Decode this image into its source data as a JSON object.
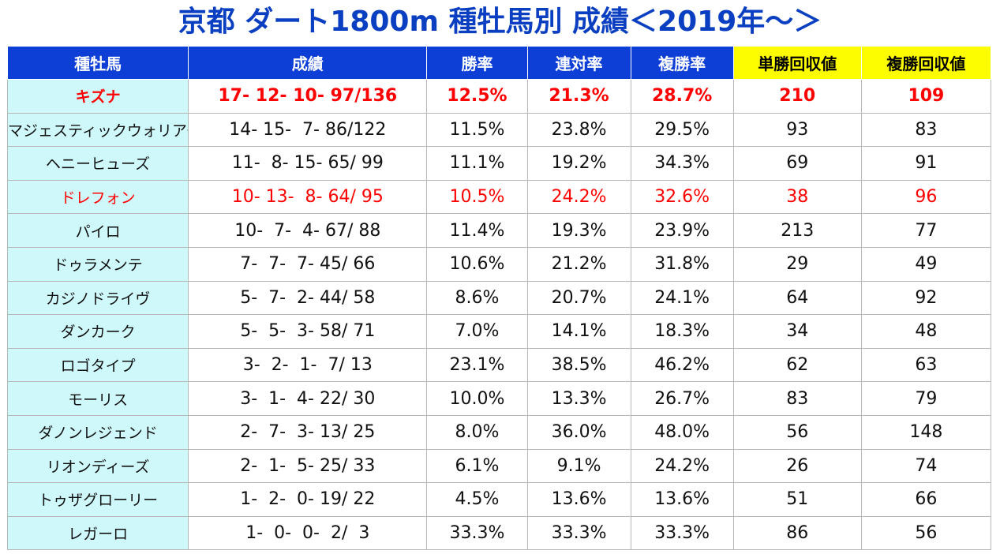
{
  "title": "京都 ダート1800m 種牡馬別 成績＜2019年～＞",
  "columns": [
    "種牡馬",
    "成績",
    "勝率",
    "連対率",
    "複勝率",
    "単勝回収値",
    "複勝回収値"
  ],
  "colors": {
    "header_bg": "#0d3fd6",
    "highlight_header_bg": "#fdfd00",
    "name_bg": "#cff8fb",
    "emphasis_text": "#ff0000",
    "title_text": "#0a3fc2"
  },
  "rows": [
    {
      "name": "キズナ",
      "record": "17- 12- 10- 97/136",
      "win": "12.5%",
      "quinella": "21.3%",
      "place": "28.7%",
      "win_roi": "210",
      "place_roi": "109",
      "style": "bold red"
    },
    {
      "name": "マジェスティックウォリアー",
      "record": "14- 15-  7- 86/122",
      "win": "11.5%",
      "quinella": "23.8%",
      "place": "29.5%",
      "win_roi": "93",
      "place_roi": "83",
      "style": ""
    },
    {
      "name": "ヘニーヒューズ",
      "record": "11-  8- 15- 65/ 99",
      "win": "11.1%",
      "quinella": "19.2%",
      "place": "34.3%",
      "win_roi": "69",
      "place_roi": "91",
      "style": ""
    },
    {
      "name": "ドレフォン",
      "record": "10- 13-  8- 64/ 95",
      "win": "10.5%",
      "quinella": "24.2%",
      "place": "32.6%",
      "win_roi": "38",
      "place_roi": "96",
      "style": "red"
    },
    {
      "name": "パイロ",
      "record": "10-  7-  4- 67/ 88",
      "win": "11.4%",
      "quinella": "19.3%",
      "place": "23.9%",
      "win_roi": "213",
      "place_roi": "77",
      "style": ""
    },
    {
      "name": "ドゥラメンテ",
      "record": "7-  7-  7- 45/ 66",
      "win": "10.6%",
      "quinella": "21.2%",
      "place": "31.8%",
      "win_roi": "29",
      "place_roi": "49",
      "style": ""
    },
    {
      "name": "カジノドライヴ",
      "record": "5-  7-  2- 44/ 58",
      "win": "8.6%",
      "quinella": "20.7%",
      "place": "24.1%",
      "win_roi": "64",
      "place_roi": "92",
      "style": ""
    },
    {
      "name": "ダンカーク",
      "record": "5-  5-  3- 58/ 71",
      "win": "7.0%",
      "quinella": "14.1%",
      "place": "18.3%",
      "win_roi": "34",
      "place_roi": "48",
      "style": ""
    },
    {
      "name": "ロゴタイプ",
      "record": "3-  2-  1-  7/ 13",
      "win": "23.1%",
      "quinella": "38.5%",
      "place": "46.2%",
      "win_roi": "62",
      "place_roi": "63",
      "style": ""
    },
    {
      "name": "モーリス",
      "record": "3-  1-  4- 22/ 30",
      "win": "10.0%",
      "quinella": "13.3%",
      "place": "26.7%",
      "win_roi": "83",
      "place_roi": "79",
      "style": ""
    },
    {
      "name": "ダノンレジェンド",
      "record": "2-  7-  3- 13/ 25",
      "win": "8.0%",
      "quinella": "36.0%",
      "place": "48.0%",
      "win_roi": "56",
      "place_roi": "148",
      "style": ""
    },
    {
      "name": "リオンディーズ",
      "record": "2-  1-  5- 25/ 33",
      "win": "6.1%",
      "quinella": "9.1%",
      "place": "24.2%",
      "win_roi": "26",
      "place_roi": "74",
      "style": ""
    },
    {
      "name": "トゥザグローリー",
      "record": "1-  2-  0- 19/ 22",
      "win": "4.5%",
      "quinella": "13.6%",
      "place": "13.6%",
      "win_roi": "51",
      "place_roi": "66",
      "style": ""
    },
    {
      "name": "レガーロ",
      "record": "1-  0-  0-  2/  3",
      "win": "33.3%",
      "quinella": "33.3%",
      "place": "33.3%",
      "win_roi": "86",
      "place_roi": "56",
      "style": ""
    }
  ]
}
